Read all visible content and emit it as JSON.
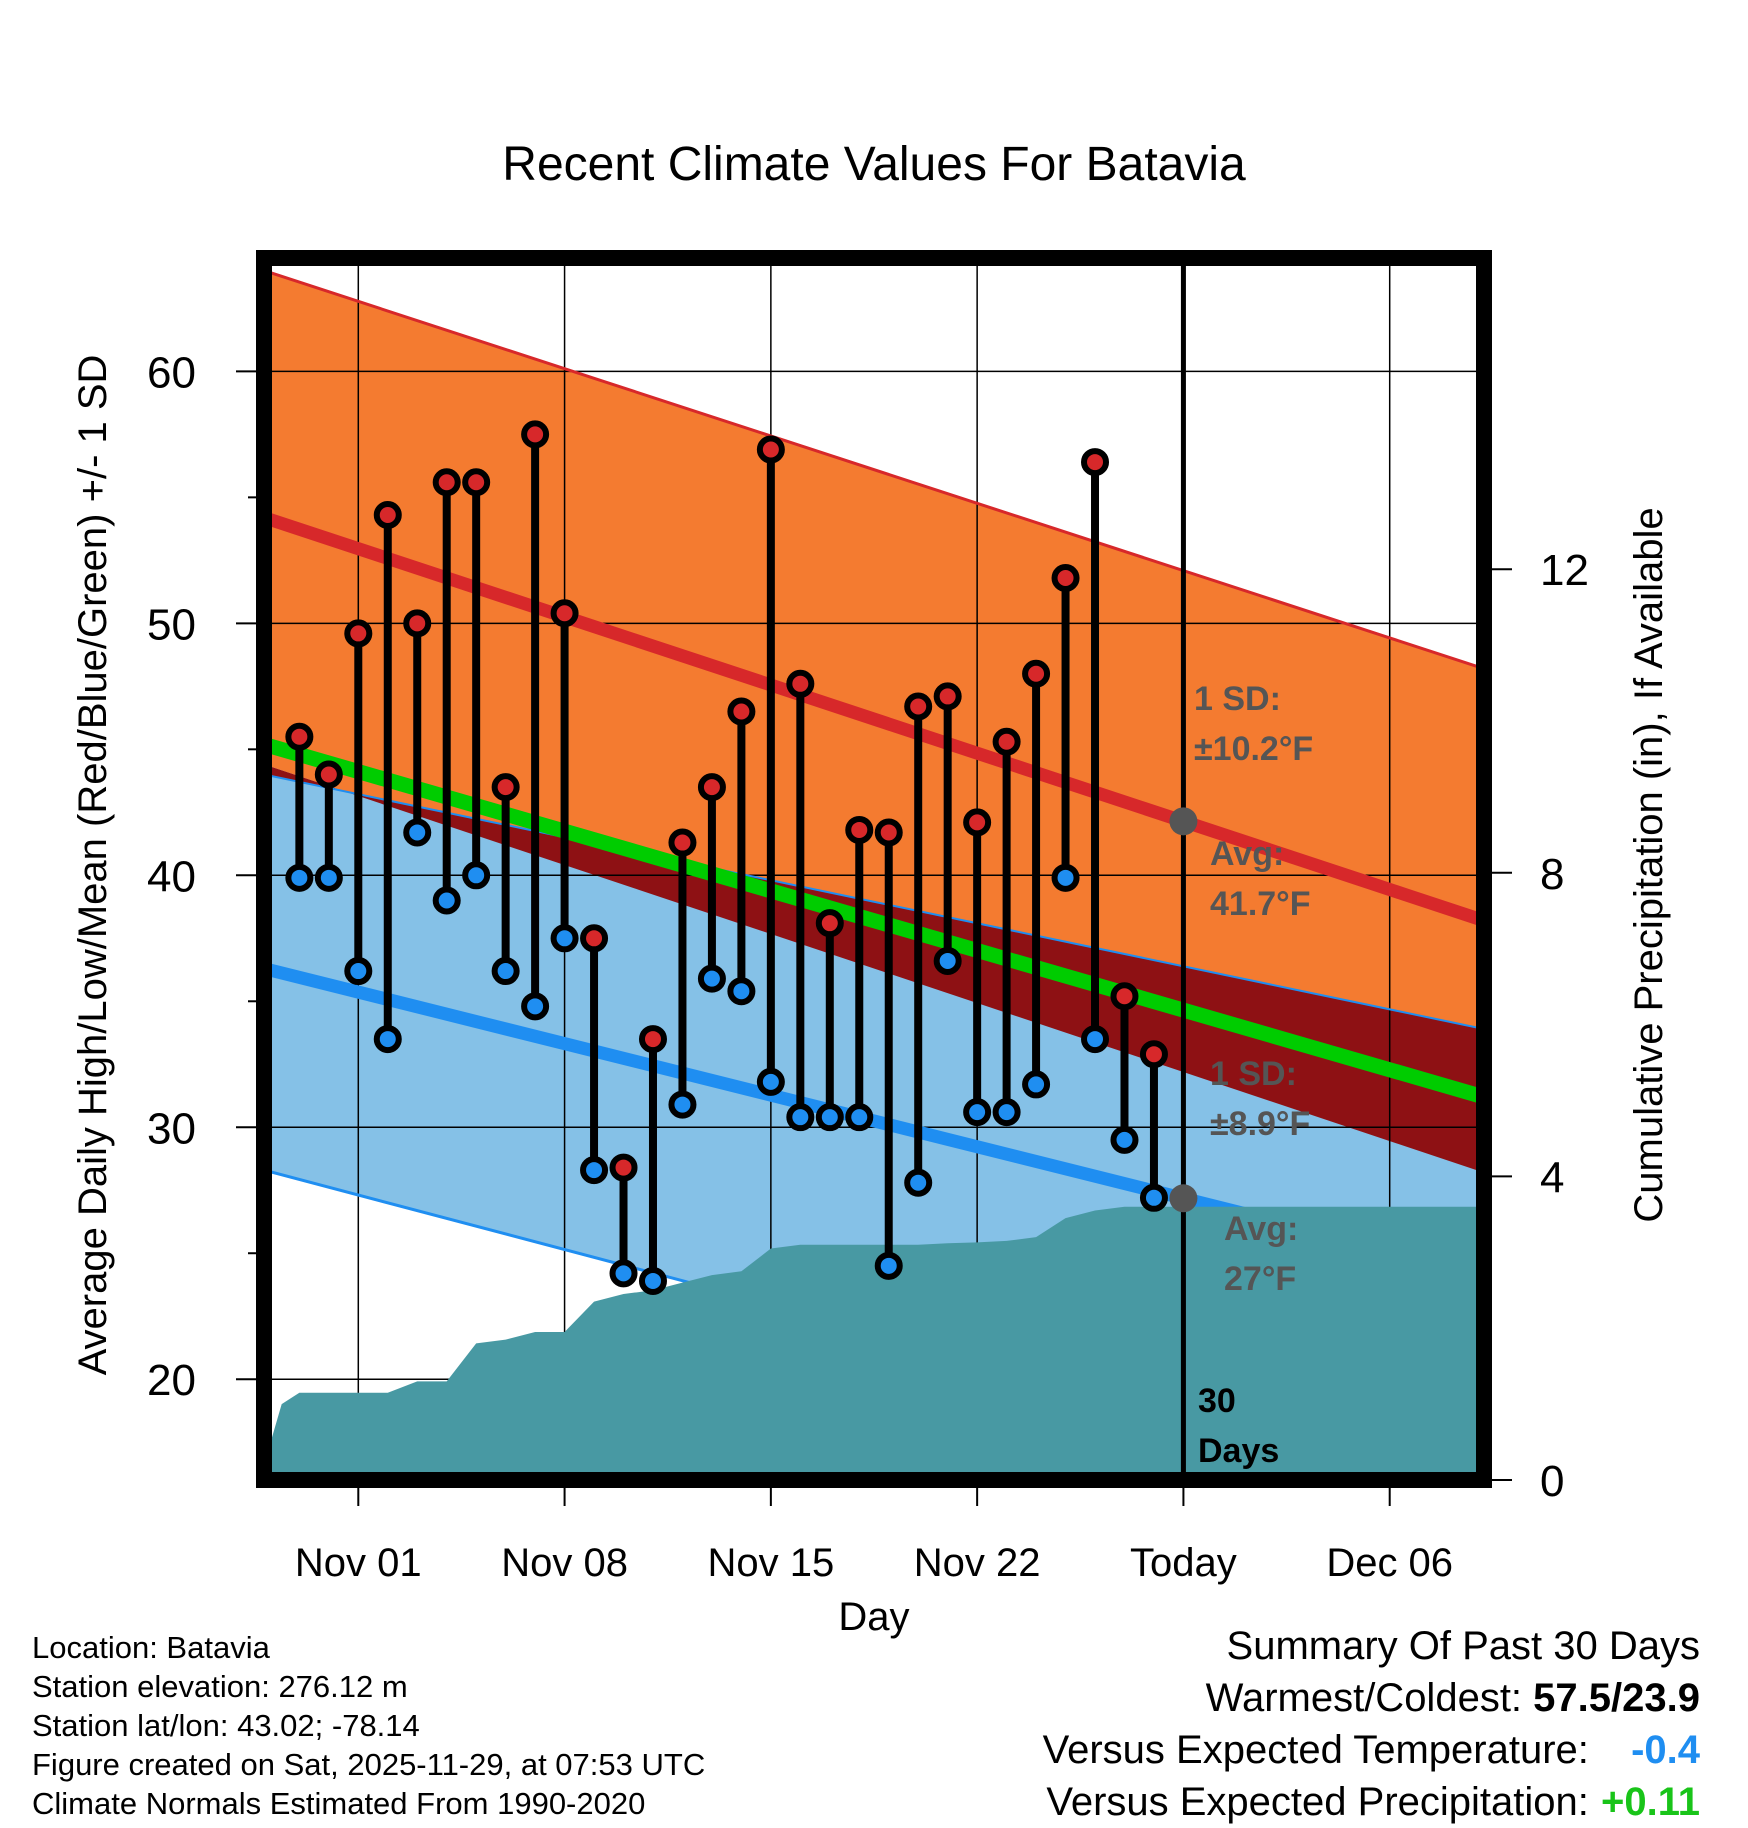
{
  "chart_data": {
    "type": "line",
    "title": "Recent Climate Values For Batavia",
    "xlabel": "Day",
    "ylabel": "Average Daily High/Low/Mean (Red/Blue/Green) +/- 1 SD",
    "y2label": "Cumulative Precipitation (in), If Available",
    "xlim": [
      -3.2,
      38.2
    ],
    "ylim": [
      16.0,
      64.5
    ],
    "y2lim": [
      0,
      16.1
    ],
    "yticks": [
      20,
      30,
      40,
      50,
      60
    ],
    "y2ticks": [
      0,
      4,
      8,
      12
    ],
    "xtick_positions": [
      0,
      7,
      14,
      21,
      28,
      35
    ],
    "xtick_labels": [
      "Nov 01",
      "Nov 08",
      "Nov 15",
      "Nov 22",
      "Today",
      "Dec 06"
    ],
    "today_x": 28,
    "normals": {
      "x": [
        -3.2,
        38.2
      ],
      "high_avg": [
        54.2,
        38.2
      ],
      "high_sd_upper": [
        64.0,
        48.2
      ],
      "high_sd_lower": [
        44.4,
        28.2
      ],
      "low_avg": [
        36.3,
        24.2
      ],
      "low_sd_upper": [
        44.0,
        33.9
      ],
      "low_sd_lower": [
        28.3,
        15.5
      ],
      "mean_avg": [
        45.2,
        31.2
      ],
      "high_sd_value": "±10.2°F",
      "low_sd_value": "±8.9°F",
      "high_avg_value": "41.7°F",
      "low_avg_value": "27°F"
    },
    "series": [
      {
        "name": "High",
        "x": [
          -2,
          -1,
          0,
          1,
          2,
          3,
          4,
          5,
          6,
          7,
          8,
          9,
          10,
          11,
          12,
          13,
          14,
          15,
          16,
          17,
          18,
          19,
          20,
          21,
          22,
          23,
          24,
          25,
          26,
          27
        ],
        "values": [
          45.5,
          44.0,
          49.6,
          54.3,
          50.0,
          55.6,
          55.6,
          43.5,
          57.5,
          50.4,
          37.5,
          28.4,
          33.5,
          41.3,
          43.5,
          46.5,
          56.9,
          47.6,
          38.1,
          41.8,
          41.7,
          46.7,
          47.1,
          42.1,
          45.3,
          48.0,
          51.8,
          56.4,
          35.2,
          32.9
        ]
      },
      {
        "name": "Low",
        "x": [
          -2,
          -1,
          0,
          1,
          2,
          3,
          4,
          5,
          6,
          7,
          8,
          9,
          10,
          11,
          12,
          13,
          14,
          15,
          16,
          17,
          18,
          19,
          20,
          21,
          22,
          23,
          24,
          25,
          26,
          27
        ],
        "values": [
          39.9,
          39.9,
          36.2,
          33.5,
          41.7,
          39.0,
          40.0,
          36.2,
          34.8,
          37.5,
          28.3,
          24.2,
          23.9,
          30.9,
          35.9,
          35.4,
          31.8,
          30.4,
          30.4,
          30.4,
          24.5,
          27.8,
          36.6,
          30.6,
          30.6,
          31.7,
          39.9,
          33.5,
          29.5,
          27.2
        ]
      },
      {
        "name": "Cumulative Precipitation",
        "x": [
          -3.2,
          -2.6,
          -2,
          -1,
          0,
          1,
          2,
          3,
          4,
          5,
          6,
          7,
          8,
          9,
          10,
          11,
          12,
          13,
          14,
          15,
          16,
          17,
          18,
          19,
          20,
          21,
          22,
          23,
          24,
          25,
          26,
          27,
          28,
          38.2
        ],
        "values": [
          0.2,
          1.0,
          1.15,
          1.15,
          1.15,
          1.15,
          1.3,
          1.3,
          1.8,
          1.85,
          1.95,
          1.95,
          2.35,
          2.45,
          2.5,
          2.6,
          2.7,
          2.75,
          3.05,
          3.1,
          3.1,
          3.1,
          3.1,
          3.1,
          3.12,
          3.13,
          3.15,
          3.2,
          3.45,
          3.55,
          3.6,
          3.6,
          3.6,
          3.6
        ]
      }
    ],
    "annotations": [
      {
        "label": "1 SD:",
        "value": "±10.2°F"
      },
      {
        "label": "Avg:",
        "value": "41.7°F"
      },
      {
        "label": "1 SD:",
        "value": "±8.9°F"
      },
      {
        "label": "Avg:",
        "value": "27°F"
      },
      {
        "label": "30",
        "value": "Days"
      }
    ],
    "colors": {
      "high_band": "#f47b30",
      "high_line": "#d7282a",
      "low_band": "#85c1e7",
      "low_line": "#1f8ef1",
      "overlap": "#8e1114",
      "mean_line": "#00cc00",
      "precip": "#4899a3",
      "high_marker": "#d7282a",
      "low_marker": "#1f8ef1",
      "avg_marker": "#555555",
      "annotation_text": "#555555"
    }
  },
  "info": {
    "location": "Location: Batavia",
    "elevation": "Station elevation: 276.12 m",
    "latlon": "Station lat/lon: 43.02; -78.14",
    "created": "Figure created on Sat, 2025-11-29, at 07:53 UTC",
    "normals": "Climate Normals Estimated From 1990-2020"
  },
  "summary": {
    "title": "Summary Of Past 30 Days",
    "warm_cold_label": "Warmest/Coldest:",
    "warm_cold_value": "57.5/23.9",
    "temp_label": "Versus Expected Temperature:",
    "temp_value": "-0.4",
    "temp_color": "#1f8ef1",
    "precip_label": "Versus Expected Precipitation:",
    "precip_value": "+0.11",
    "precip_color": "#19c419"
  }
}
